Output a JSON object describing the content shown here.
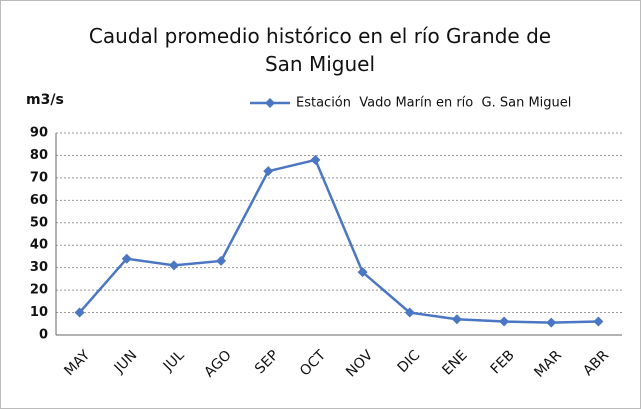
{
  "chart_data": {
    "type": "line",
    "title": "Caudal promedio histórico en el río Grande de San Miguel",
    "y_label": "m3/s",
    "categories": [
      "MAY",
      "JUN",
      "JUL",
      "AGO",
      "SEP",
      "OCT",
      "NOV",
      "DIC",
      "ENE",
      "FEB",
      "MAR",
      "ABR"
    ],
    "series": [
      {
        "name": "Estación  Vado Marín en río  G. San Miguel",
        "color": "#4a76c3",
        "values": [
          10,
          34,
          31,
          33,
          73,
          78,
          28,
          10,
          7,
          6,
          5.5,
          6
        ]
      }
    ],
    "ylim": [
      0,
      90
    ],
    "yticks": [
      0,
      10,
      20,
      30,
      40,
      50,
      60,
      70,
      80,
      90
    ],
    "grid": true,
    "legend": "top-right"
  }
}
